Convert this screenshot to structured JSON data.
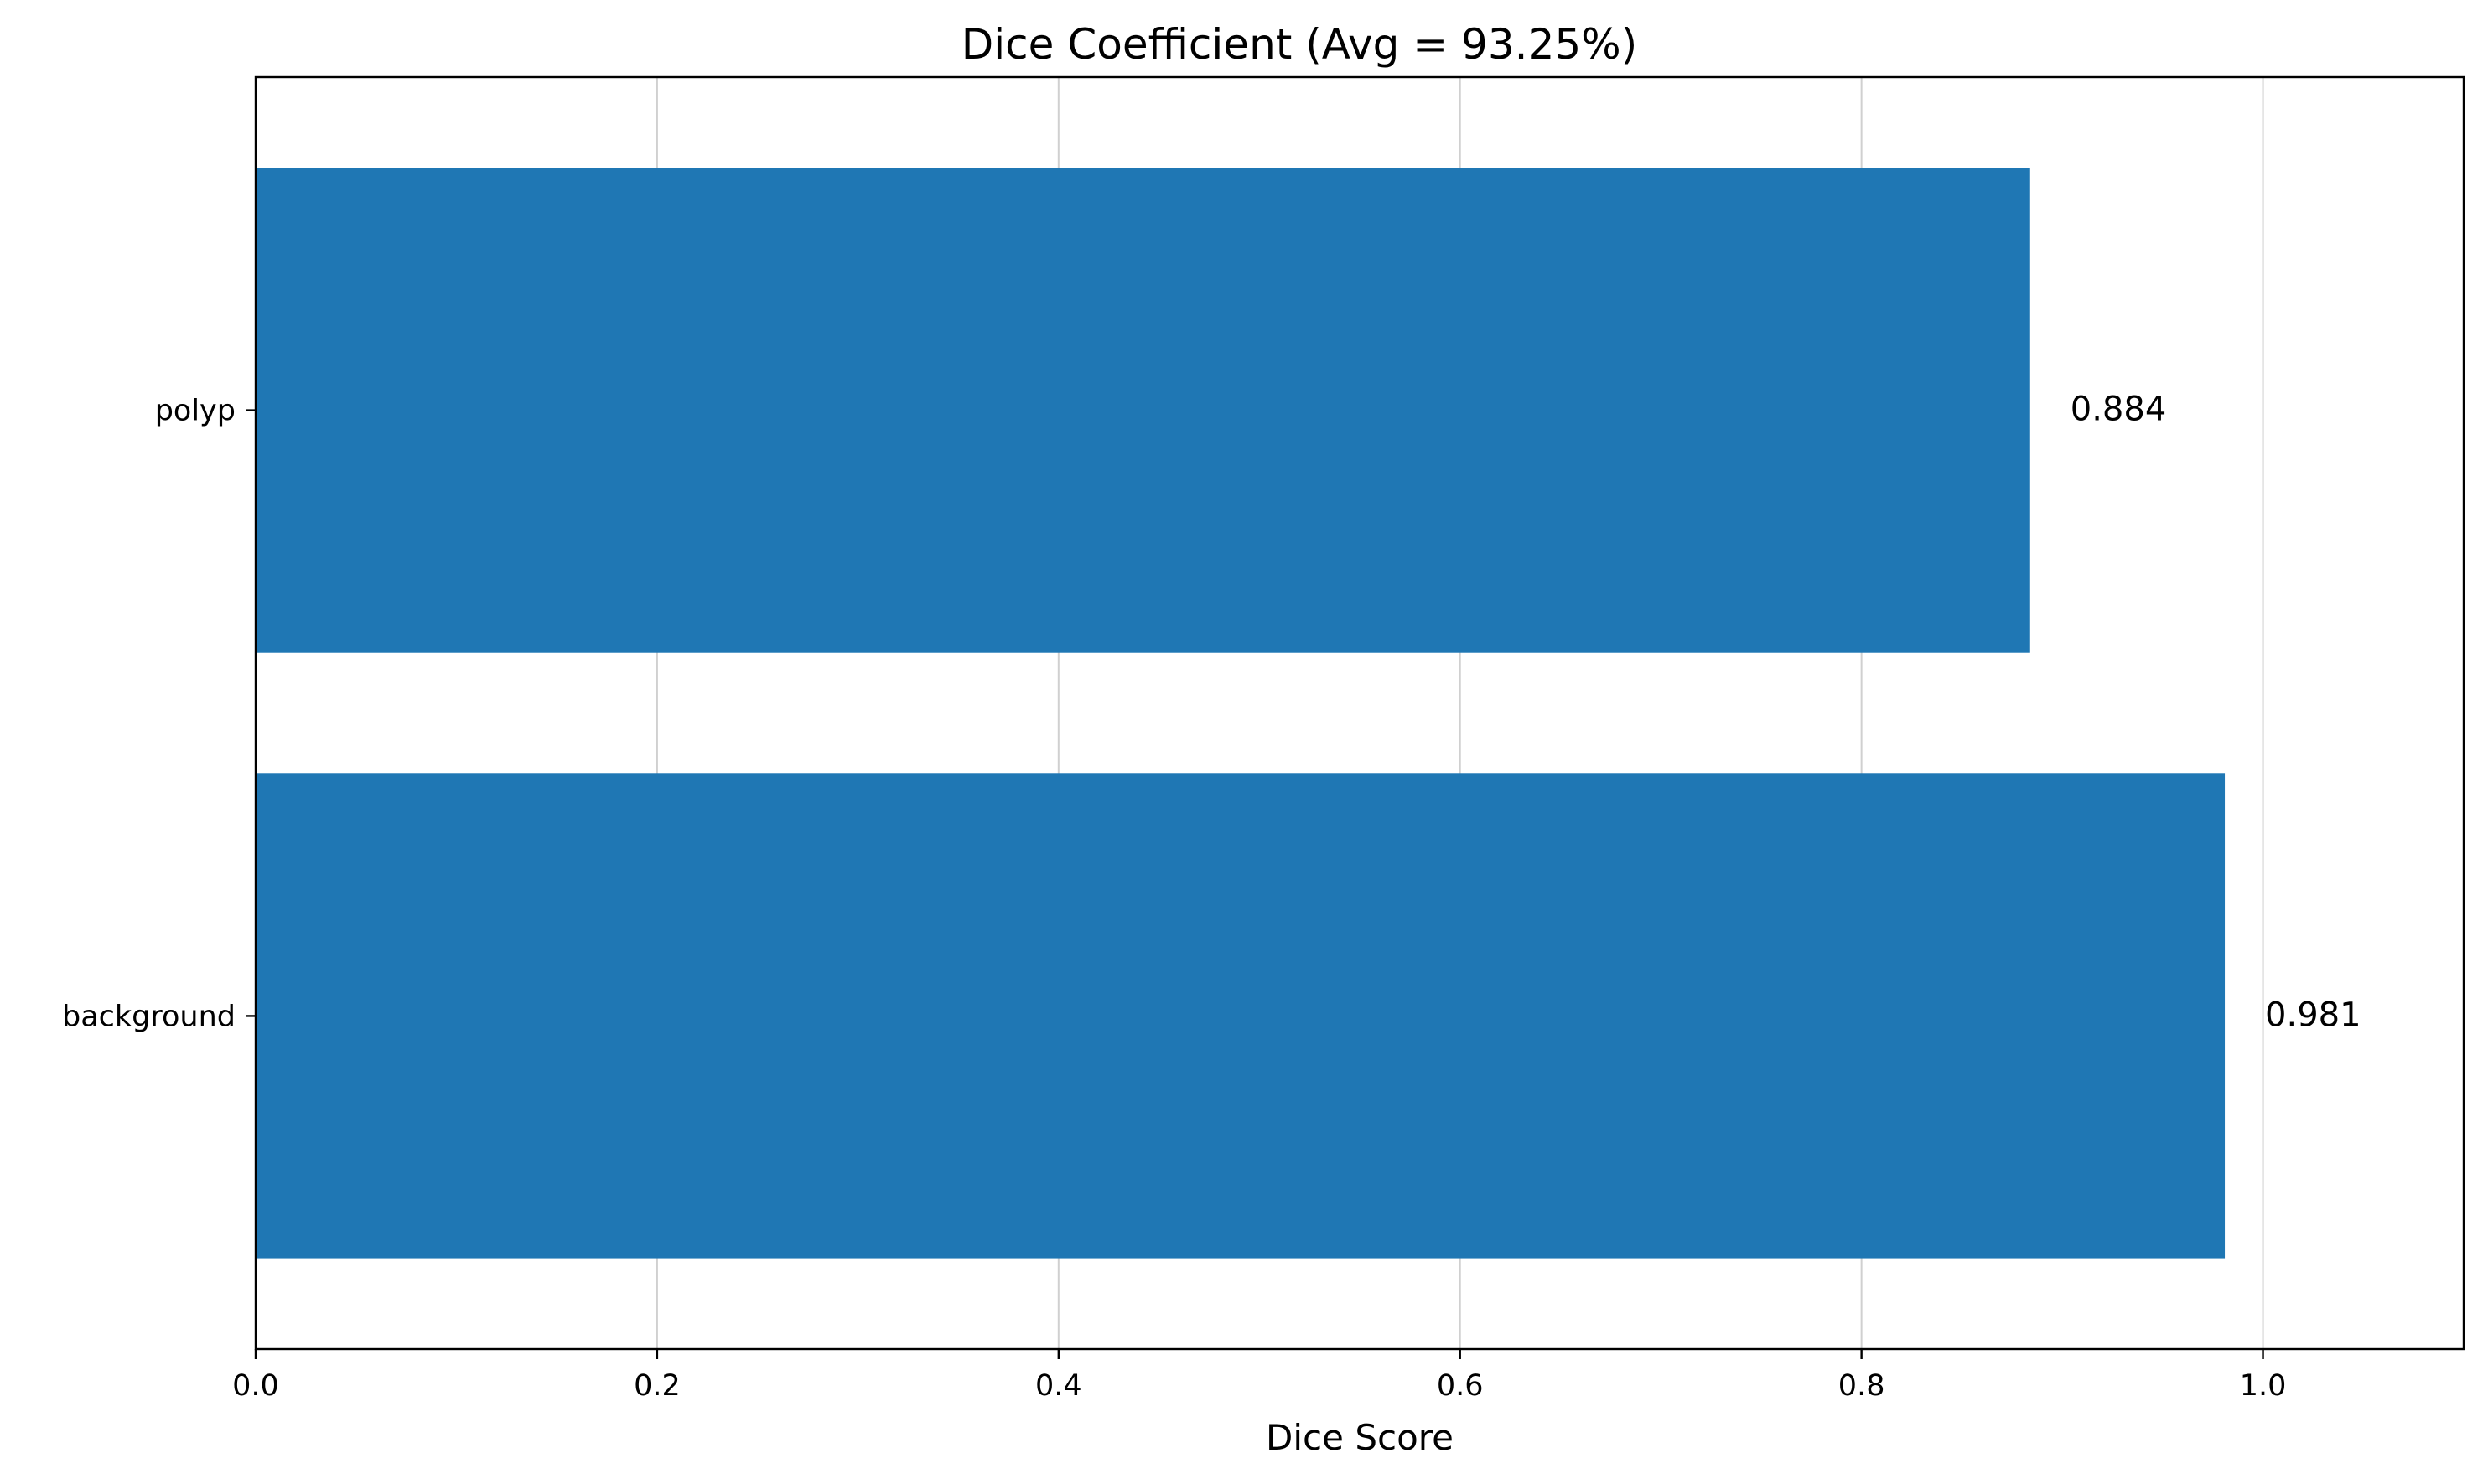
{
  "chart_data": {
    "type": "bar",
    "orientation": "horizontal",
    "title": "Dice Coefficient (Avg = 93.25%)",
    "xlabel": "Dice Score",
    "ylabel": "",
    "categories": [
      "background",
      "polyp"
    ],
    "values": [
      0.981,
      0.884
    ],
    "value_labels": [
      "0.981",
      "0.884"
    ],
    "xlim": [
      0,
      1.1
    ],
    "xticks": [
      0.0,
      0.2,
      0.4,
      0.6,
      0.8,
      1.0
    ],
    "xtick_labels": [
      "0.0",
      "0.2",
      "0.4",
      "0.6",
      "0.8",
      "1.0"
    ],
    "grid": "x-axis",
    "bar_color": "#1f77b4"
  }
}
